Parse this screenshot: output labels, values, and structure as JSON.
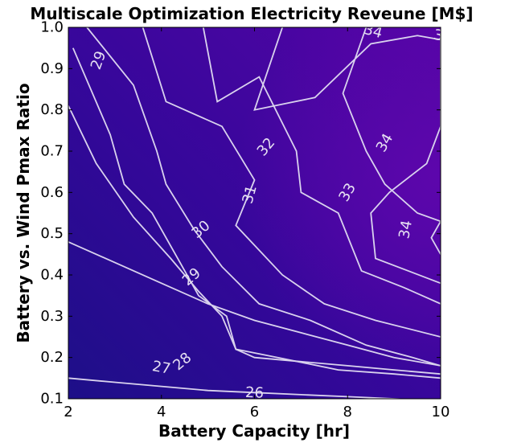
{
  "chart_data": {
    "type": "contour",
    "title": "Multiscale Optimization Electricity Reveune [M$]",
    "xlabel": "Battery Capacity [hr]",
    "ylabel": "Battery vs. Wind Pmax Ratio",
    "xlim": [
      2,
      10
    ],
    "ylim": [
      0.1,
      1.0
    ],
    "xticks": [
      2,
      4,
      6,
      8,
      10
    ],
    "yticks": [
      0.1,
      0.2,
      0.3,
      0.4,
      0.5,
      0.6,
      0.7,
      0.8,
      0.9,
      1.0
    ],
    "xtick_labels": [
      "2",
      "4",
      "6",
      "8",
      "10"
    ],
    "ytick_labels": [
      "0.1",
      "0.2",
      "0.3",
      "0.4",
      "0.5",
      "0.6",
      "0.7",
      "0.8",
      "0.9",
      "1.0"
    ],
    "colors": {
      "low": "#1f0f86",
      "mid": "#3a049a",
      "high": "#5a04a8",
      "contour_line": "#d9d2ee",
      "contour_label": "#e6e0f2"
    },
    "contours": [
      {
        "level": 26,
        "points": [
          [
            2,
            0.15
          ],
          [
            3,
            0.14
          ],
          [
            4,
            0.13
          ],
          [
            5,
            0.12
          ],
          [
            6,
            0.115
          ],
          [
            7,
            0.11
          ],
          [
            8,
            0.105
          ],
          [
            9,
            0.1
          ],
          [
            10,
            0.095
          ]
        ]
      },
      {
        "level": 27,
        "points": [
          [
            2,
            0.48
          ],
          [
            3,
            0.43
          ],
          [
            4,
            0.38
          ],
          [
            5,
            0.33
          ],
          [
            6,
            0.29
          ],
          [
            7,
            0.26
          ],
          [
            8,
            0.23
          ],
          [
            9,
            0.2
          ],
          [
            10,
            0.18
          ]
        ]
      },
      {
        "level": 28,
        "points": [
          [
            2,
            0.81
          ],
          [
            2.6,
            0.67
          ],
          [
            3.4,
            0.54
          ],
          [
            4.2,
            0.44
          ],
          [
            4.8,
            0.36
          ],
          [
            5.3,
            0.3
          ],
          [
            5.6,
            0.22
          ],
          [
            6,
            0.2
          ],
          [
            7,
            0.19
          ],
          [
            8,
            0.18
          ],
          [
            9,
            0.17
          ],
          [
            10,
            0.16
          ]
        ]
      },
      {
        "level": 29,
        "points": [
          [
            2.1,
            0.95
          ],
          [
            2.9,
            0.74
          ],
          [
            3.2,
            0.62
          ],
          [
            3.8,
            0.55
          ],
          [
            4.4,
            0.43
          ],
          [
            4.8,
            0.35
          ],
          [
            5.4,
            0.3
          ],
          [
            5.6,
            0.22
          ],
          [
            6.5,
            0.2
          ],
          [
            7.8,
            0.17
          ],
          [
            9,
            0.16
          ],
          [
            10,
            0.15
          ]
        ]
      },
      {
        "level": 30,
        "points": [
          [
            2.4,
            1.0
          ],
          [
            3.4,
            0.86
          ],
          [
            3.9,
            0.7
          ],
          [
            4.1,
            0.62
          ],
          [
            4.7,
            0.51
          ],
          [
            5.3,
            0.42
          ],
          [
            6.1,
            0.33
          ],
          [
            7.2,
            0.29
          ],
          [
            8.4,
            0.23
          ],
          [
            9.4,
            0.2
          ],
          [
            10,
            0.18
          ]
        ]
      },
      {
        "level": 31,
        "points": [
          [
            3.6,
            1.0
          ],
          [
            4.1,
            0.82
          ],
          [
            5.3,
            0.76
          ],
          [
            6.0,
            0.63
          ],
          [
            5.6,
            0.52
          ],
          [
            6.6,
            0.4
          ],
          [
            7.5,
            0.33
          ],
          [
            8.6,
            0.29
          ],
          [
            10,
            0.25
          ]
        ]
      },
      {
        "level": 32,
        "points": [
          [
            4.9,
            1.0
          ],
          [
            5.2,
            0.82
          ],
          [
            6.1,
            0.88
          ],
          [
            6.9,
            0.7
          ],
          [
            7.0,
            0.6
          ],
          [
            7.8,
            0.55
          ],
          [
            8.3,
            0.41
          ],
          [
            9.2,
            0.37
          ],
          [
            10,
            0.33
          ]
        ]
      },
      {
        "level": 33,
        "points": [
          [
            6.6,
            1.0
          ],
          [
            6.0,
            0.8
          ],
          [
            7.3,
            0.83
          ],
          [
            8.5,
            0.96
          ],
          [
            9.5,
            0.98
          ],
          [
            10,
            0.97
          ],
          [
            10,
            0.76
          ],
          [
            9.7,
            0.67
          ],
          [
            8.9,
            0.6
          ],
          [
            8.5,
            0.55
          ],
          [
            8.6,
            0.44
          ],
          [
            10,
            0.38
          ]
        ]
      },
      {
        "level": 34,
        "points": [
          [
            8.4,
            1.0
          ],
          [
            7.9,
            0.84
          ],
          [
            8.4,
            0.7
          ],
          [
            8.8,
            0.62
          ],
          [
            9.5,
            0.55
          ],
          [
            10,
            0.53
          ],
          [
            9.8,
            0.49
          ],
          [
            10,
            0.45
          ]
        ]
      }
    ],
    "contour_labels": [
      {
        "text": "26",
        "x": 6.0,
        "y": 0.114,
        "angle": 3
      },
      {
        "text": "27",
        "x": 4.0,
        "y": 0.175,
        "angle": 10
      },
      {
        "text": "28",
        "x": 4.45,
        "y": 0.19,
        "angle": -40
      },
      {
        "text": "29",
        "x": 4.65,
        "y": 0.395,
        "angle": -40
      },
      {
        "text": "30",
        "x": 4.85,
        "y": 0.51,
        "angle": -40
      },
      {
        "text": "31",
        "x": 5.9,
        "y": 0.595,
        "angle": -75
      },
      {
        "text": "32",
        "x": 6.25,
        "y": 0.71,
        "angle": -50
      },
      {
        "text": "33",
        "x": 8.0,
        "y": 0.6,
        "angle": -60
      },
      {
        "text": "34",
        "x": 8.8,
        "y": 0.72,
        "angle": -60
      },
      {
        "text": "34",
        "x": 8.55,
        "y": 0.99,
        "angle": 15
      },
      {
        "text": "34",
        "x": 9.25,
        "y": 0.51,
        "angle": -80
      },
      {
        "text": "29",
        "x": 2.65,
        "y": 0.92,
        "angle": -70
      },
      {
        "text": "3",
        "x": 9.95,
        "y": 0.98,
        "angle": 10
      }
    ]
  }
}
